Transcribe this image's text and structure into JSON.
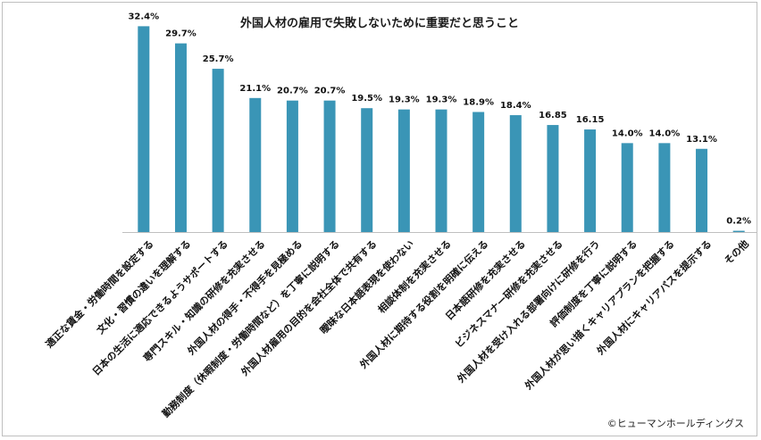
{
  "chart_data": {
    "type": "bar",
    "title": "外国人材の雇用で失敗しないために重要だと思うこと",
    "xlabel": "",
    "ylabel": "",
    "ylim": [
      0,
      34
    ],
    "grid": false,
    "categories": [
      "適正な賃金・労働時間を設定する",
      "文化・習慣の違いを理解する",
      "日本の生活に適応できるようサポートする",
      "専門スキル・知識の研修を充実させる",
      "外国人材の得手・不得手を見極める",
      "勤務制度（休暇制度・労働時間など）を丁寧に説明する",
      "外国人材雇用の目的を会社全体で共有する",
      "曖昧な日本語表現を使わない",
      "相談体制を充実させる",
      "外国人材に期待する役割を明確に伝える",
      "日本語研修を充実させる",
      "ビジネスマナー研修を充実させる",
      "外国人材を受け入れる部署向けに研修を行う",
      "評価制度を丁寧に説明する",
      "外国人材が思い描くキャリアプランを把握する",
      "外国人材にキャリアパスを提示する",
      "その他"
    ],
    "values": [
      32.4,
      29.7,
      25.7,
      21.1,
      20.7,
      20.7,
      19.5,
      19.3,
      19.3,
      18.9,
      18.4,
      16.85,
      16.15,
      14.0,
      14.0,
      13.1,
      0.2
    ],
    "value_labels": [
      "32.4%",
      "29.7%",
      "25.7%",
      "21.1%",
      "20.7%",
      "20.7%",
      "19.5%",
      "19.3%",
      "19.3%",
      "18.9%",
      "18.4%",
      "16.85",
      "16.15",
      "14.0%",
      "14.0%",
      "13.1%",
      "0.2%"
    ],
    "bar_color": "#3a95b6",
    "axis_color": "#bfbfbf"
  },
  "credit": "©ヒューマンホールディングス"
}
